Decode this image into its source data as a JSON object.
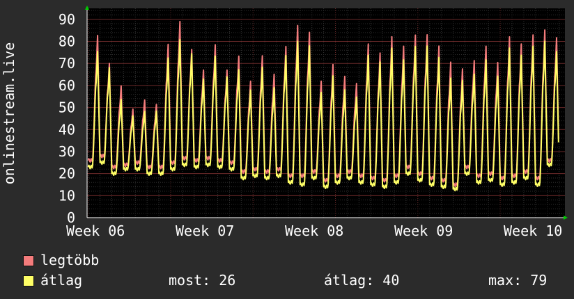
{
  "chart_data": {
    "type": "line",
    "ylabel": "onlinestream.live",
    "ylim": [
      0,
      95
    ],
    "yticks": [
      0,
      10,
      20,
      30,
      40,
      50,
      60,
      70,
      80,
      90
    ],
    "xticks": [
      "Week 06",
      "Week 07",
      "Week 08",
      "Week 09",
      "Week 10"
    ],
    "grid": true,
    "series": [
      {
        "name": "legtöbb",
        "color": "#f47c7c",
        "daily_peaks": [
          80,
          68,
          58,
          48,
          52,
          50,
          76,
          86,
          74,
          65,
          76,
          65,
          71,
          60,
          71,
          63,
          75,
          84,
          81,
          60,
          67,
          62,
          59,
          76,
          72,
          79,
          75,
          80,
          80,
          75,
          68,
          65,
          69,
          75,
          68,
          79,
          76,
          80,
          82,
          79
        ],
        "daily_lows": [
          25,
          27,
          22,
          23,
          24,
          22,
          22,
          24,
          26,
          25,
          26,
          25,
          24,
          20,
          21,
          20,
          21,
          18,
          18,
          20,
          16,
          18,
          20,
          18,
          17,
          16,
          18,
          22,
          19,
          17,
          16,
          14,
          22,
          18,
          19,
          17,
          18,
          20,
          17,
          25
        ]
      },
      {
        "name": "átlag",
        "color": "#ffff66",
        "daily_peaks": [
          73,
          66,
          52,
          45,
          47,
          47,
          70,
          78,
          72,
          61,
          71,
          62,
          65,
          56,
          66,
          57,
          71,
          77,
          75,
          55,
          62,
          56,
          53,
          71,
          68,
          74,
          69,
          75,
          75,
          70,
          61,
          60,
          63,
          69,
          62,
          74,
          71,
          75,
          77,
          73
        ],
        "daily_lows": [
          23,
          25,
          20,
          22,
          22,
          20,
          20,
          22,
          24,
          23,
          24,
          23,
          22,
          18,
          19,
          18,
          19,
          16,
          15,
          18,
          14,
          16,
          18,
          16,
          15,
          14,
          16,
          20,
          17,
          15,
          14,
          13,
          20,
          16,
          17,
          15,
          16,
          18,
          15,
          24
        ]
      }
    ]
  },
  "legend": {
    "items": [
      {
        "label": "legtöbb",
        "color": "#f47c7c"
      },
      {
        "label": "átlag",
        "color": "#ffff66"
      }
    ],
    "stats": {
      "now": "most: 26",
      "avg": "átlag: 40",
      "max": "max: 79"
    }
  }
}
